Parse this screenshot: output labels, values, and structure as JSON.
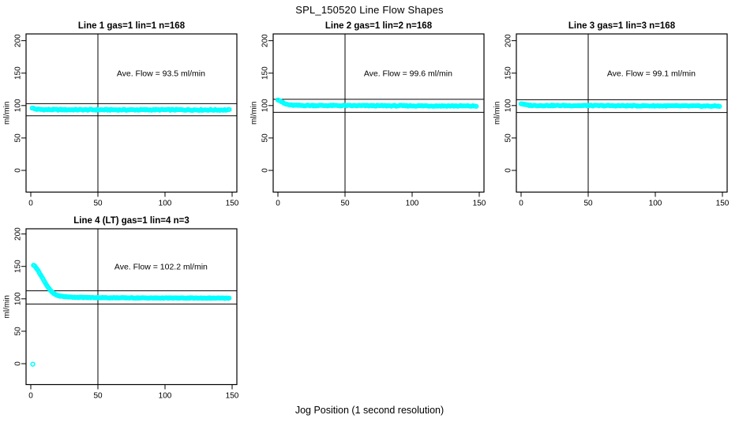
{
  "figure": {
    "title": "SPL_150520  Line Flow Shapes",
    "xlabel": "Jog Position (1 second resolution)",
    "point_color": "#00ffff",
    "line_color": "#000000",
    "background": "#ffffff"
  },
  "axes": {
    "xticks": [
      0,
      50,
      100,
      150
    ],
    "yticks": [
      0,
      50,
      100,
      150,
      200
    ],
    "ylabel": "ml/min"
  },
  "chart_data": {
    "type": "scatter",
    "marker": "open-circle",
    "shared_xlabel": "Jog Position (1 second resolution)",
    "shared_ylabel": "ml/min",
    "xlim": [
      0,
      150
    ],
    "ylim": [
      -30,
      210
    ],
    "panels": [
      {
        "title": "Line 1 gas=1 lin=1 n=168",
        "annotation": "Ave. Flow =  93.5  ml/min",
        "ave_flow_ml_min": 93.5,
        "n": 168,
        "grid": {
          "row": 0,
          "col": 0
        },
        "vline_x": 50,
        "hlines": [
          102.9,
          84.2
        ],
        "x_range": [
          1,
          148
        ],
        "x_step": 0.88,
        "jitter": 0.8,
        "anchors": [
          [
            1,
            96.6
          ],
          [
            2,
            95.4
          ],
          [
            3,
            94.7
          ],
          [
            5,
            94.2
          ],
          [
            8,
            93.9
          ],
          [
            12,
            93.7
          ],
          [
            20,
            93.6
          ],
          [
            40,
            93.5
          ],
          [
            70,
            93.4
          ],
          [
            100,
            93.5
          ],
          [
            130,
            93.3
          ],
          [
            148,
            93.2
          ]
        ],
        "extra_points": []
      },
      {
        "title": "Line 2 gas=1 lin=2 n=168",
        "annotation": "Ave. Flow =  99.6  ml/min",
        "ave_flow_ml_min": 99.6,
        "n": 168,
        "grid": {
          "row": 0,
          "col": 1
        },
        "vline_x": 50,
        "hlines": [
          109.6,
          89.6
        ],
        "x_range": [
          0,
          148
        ],
        "x_step": 0.88,
        "jitter": 0.7,
        "anchors": [
          [
            0,
            109.2
          ],
          [
            1,
            108.3
          ],
          [
            2,
            107.0
          ],
          [
            3,
            105.5
          ],
          [
            4,
            104.0
          ],
          [
            5,
            103.0
          ],
          [
            6,
            102.2
          ],
          [
            8,
            101.2
          ],
          [
            10,
            100.6
          ],
          [
            14,
            100.2
          ],
          [
            25,
            100.1
          ],
          [
            50,
            99.9
          ],
          [
            80,
            99.7
          ],
          [
            110,
            99.5
          ],
          [
            130,
            99.4
          ],
          [
            148,
            99.2
          ]
        ],
        "extra_points": []
      },
      {
        "title": "Line 3 gas=1 lin=3 n=168",
        "annotation": "Ave. Flow =  99.1  ml/min",
        "ave_flow_ml_min": 99.1,
        "n": 168,
        "grid": {
          "row": 0,
          "col": 2
        },
        "vline_x": 50,
        "hlines": [
          109.0,
          89.2
        ],
        "x_range": [
          0,
          148
        ],
        "x_step": 0.88,
        "jitter": 0.65,
        "anchors": [
          [
            0,
            103.0
          ],
          [
            1,
            102.5
          ],
          [
            2,
            102.0
          ],
          [
            3,
            101.4
          ],
          [
            4,
            100.9
          ],
          [
            6,
            100.4
          ],
          [
            10,
            100.1
          ],
          [
            20,
            100.0
          ],
          [
            50,
            99.9
          ],
          [
            90,
            99.6
          ],
          [
            120,
            99.4
          ],
          [
            148,
            99.1
          ]
        ],
        "extra_points": []
      },
      {
        "title": "Line 4 (LT) gas=1 lin=4 n=3",
        "annotation": "Ave. Flow =  102.2  ml/min",
        "ave_flow_ml_min": 102.2,
        "n": 3,
        "grid": {
          "row": 1,
          "col": 0
        },
        "vline_x": 50,
        "hlines": [
          112.4,
          92.0
        ],
        "x_range": [
          2,
          148
        ],
        "x_step": 0.6,
        "jitter": 0.45,
        "anchors": [
          [
            2,
            152
          ],
          [
            3,
            150.5
          ],
          [
            4,
            148
          ],
          [
            5,
            145
          ],
          [
            6,
            141.5
          ],
          [
            7,
            138
          ],
          [
            8,
            134.5
          ],
          [
            9,
            131
          ],
          [
            10,
            127.5
          ],
          [
            11,
            124
          ],
          [
            12,
            120.5
          ],
          [
            13,
            117.5
          ],
          [
            14,
            114.5
          ],
          [
            15,
            112
          ],
          [
            16,
            110
          ],
          [
            17,
            108.3
          ],
          [
            18,
            107
          ],
          [
            19,
            106
          ],
          [
            20,
            105.2
          ],
          [
            22,
            104.2
          ],
          [
            25,
            103.4
          ],
          [
            28,
            102.9
          ],
          [
            32,
            102.5
          ],
          [
            38,
            102.2
          ],
          [
            45,
            101.9
          ],
          [
            55,
            101.7
          ],
          [
            70,
            101.5
          ],
          [
            90,
            101.3
          ],
          [
            110,
            101.2
          ],
          [
            130,
            101.1
          ],
          [
            148,
            101.0
          ]
        ],
        "extra_points": [
          [
            1.5,
            -0.8
          ]
        ]
      }
    ]
  }
}
